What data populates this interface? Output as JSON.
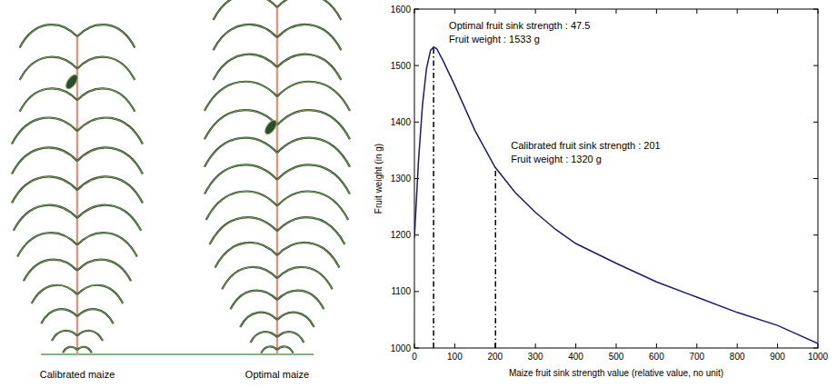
{
  "diagram": {
    "labels": [
      "Calibrated maize",
      "Optimal maize"
    ]
  },
  "chart_data": {
    "type": "line",
    "x_label": "Maize fruit sink strength value (relative value, no unit)",
    "y_label": "Fruit weight (in g)",
    "x": [
      0,
      10,
      20,
      30,
      40,
      47.5,
      55,
      70,
      100,
      150,
      200,
      250,
      300,
      350,
      400,
      500,
      600,
      700,
      800,
      900,
      1000
    ],
    "series": [
      {
        "color": "#1c1c6b",
        "values": [
          1195,
          1330,
          1430,
          1495,
          1527,
          1533,
          1530,
          1510,
          1465,
          1385,
          1320,
          1275,
          1240,
          1210,
          1185,
          1150,
          1117,
          1090,
          1063,
          1040,
          1008
        ]
      }
    ],
    "xlim": [
      0,
      1000
    ],
    "xticks": [
      0,
      100,
      200,
      300,
      400,
      500,
      600,
      700,
      800,
      900,
      1000
    ],
    "ylim": [
      1000,
      1600
    ],
    "yticks": [
      1000,
      1100,
      1200,
      1300,
      1400,
      1500,
      1600
    ],
    "grid": false,
    "annotations": [
      {
        "x": 47.5,
        "y": 1533,
        "text": [
          "Optimal fruit sink strength : 47.5",
          "Fruit weight : 1533 g"
        ]
      },
      {
        "x": 201,
        "y": 1320,
        "text": [
          "Calibrated fruit sink strength : 201",
          "Fruit weight : 1320 g"
        ]
      }
    ]
  }
}
